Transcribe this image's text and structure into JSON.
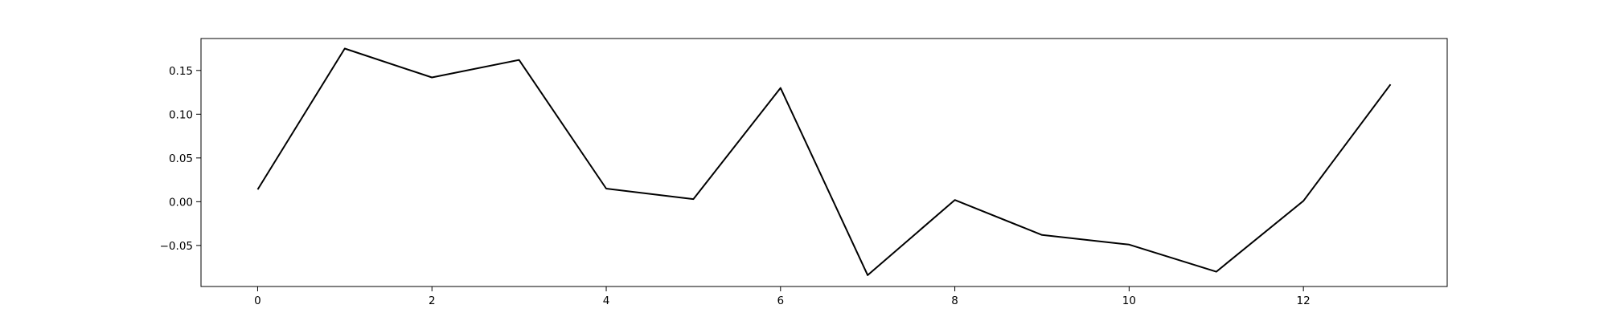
{
  "chart_data": {
    "type": "line",
    "title": "",
    "xlabel": "",
    "ylabel": "",
    "x": [
      0,
      1,
      2,
      3,
      4,
      5,
      6,
      7,
      8,
      9,
      10,
      11,
      12,
      13
    ],
    "series": [
      {
        "color": "#000000",
        "values": [
          0.014,
          0.175,
          0.142,
          0.162,
          0.015,
          0.003,
          0.13,
          -0.084,
          0.002,
          -0.038,
          -0.049,
          -0.08,
          0.001,
          0.134
        ]
      }
    ],
    "xlim": [
      -0.65,
      13.65
    ],
    "ylim": [
      -0.0969,
      0.1865
    ],
    "xticks": [
      0,
      2,
      4,
      6,
      8,
      10,
      12
    ],
    "xtick_labels": [
      "0",
      "2",
      "4",
      "6",
      "8",
      "10",
      "12"
    ],
    "yticks": [
      -0.05,
      0.0,
      0.05,
      0.1,
      0.15
    ],
    "ytick_labels": [
      "−0.05",
      "0.00",
      "0.05",
      "0.10",
      "0.15"
    ],
    "grid": false,
    "legend": false
  }
}
